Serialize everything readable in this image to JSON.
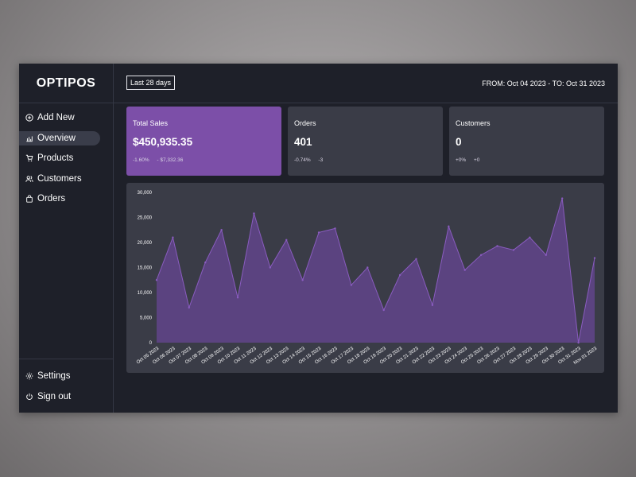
{
  "sidebar": {
    "logo": "OPTIPOS",
    "items": [
      {
        "label": "Add New",
        "icon": "plus-circle-icon"
      },
      {
        "label": "Overview",
        "icon": "chart-icon",
        "active": true
      },
      {
        "label": "Products",
        "icon": "cart-icon"
      },
      {
        "label": "Customers",
        "icon": "users-icon"
      },
      {
        "label": "Orders",
        "icon": "bag-icon"
      }
    ],
    "bottom": [
      {
        "label": "Settings",
        "icon": "gear-icon"
      },
      {
        "label": "Sign out",
        "icon": "power-icon"
      }
    ]
  },
  "header": {
    "range_button": "Last 28 days",
    "date_range": "FROM: Oct 04 2023 - TO: Oct 31 2023"
  },
  "cards": [
    {
      "label": "Total Sales",
      "value": "$450,935.35",
      "delta_pct": "-1.60%",
      "delta_abs": "- $7,332.36"
    },
    {
      "label": "Orders",
      "value": "401",
      "delta_pct": "-0.74%",
      "delta_abs": "-3"
    },
    {
      "label": "Customers",
      "value": "0",
      "delta_pct": "+0%",
      "delta_abs": "+0"
    }
  ],
  "colors": {
    "accent": "#7c4fa8",
    "area_fill": "#5b4380",
    "area_line": "#8a5cc0"
  },
  "chart_data": {
    "type": "area",
    "categories": [
      "Oct 05 2023",
      "Oct 06 2023",
      "Oct 07 2023",
      "Oct 08 2023",
      "Oct 09 2023",
      "Oct 10 2023",
      "Oct 11 2023",
      "Oct 12 2023",
      "Oct 13 2023",
      "Oct 14 2023",
      "Oct 15 2023",
      "Oct 16 2023",
      "Oct 17 2023",
      "Oct 18 2023",
      "Oct 19 2023",
      "Oct 20 2023",
      "Oct 21 2023",
      "Oct 22 2023",
      "Oct 23 2023",
      "Oct 24 2023",
      "Oct 25 2023",
      "Oct 26 2023",
      "Oct 27 2023",
      "Oct 28 2023",
      "Oct 29 2023",
      "Oct 30 2023",
      "Oct 31 2023",
      "Nov 01 2023"
    ],
    "values": [
      12500,
      21000,
      7000,
      16000,
      22500,
      9000,
      25800,
      15000,
      20500,
      12500,
      22000,
      22800,
      11500,
      15000,
      6500,
      13500,
      16700,
      7500,
      23200,
      14500,
      17500,
      19300,
      18500,
      21000,
      17500,
      28800,
      0,
      16900
    ],
    "yticks": [
      "0",
      "5,000",
      "10,000",
      "15,000",
      "20,000",
      "25,000",
      "30,000"
    ],
    "ylim": [
      0,
      30000
    ],
    "grid": false
  }
}
